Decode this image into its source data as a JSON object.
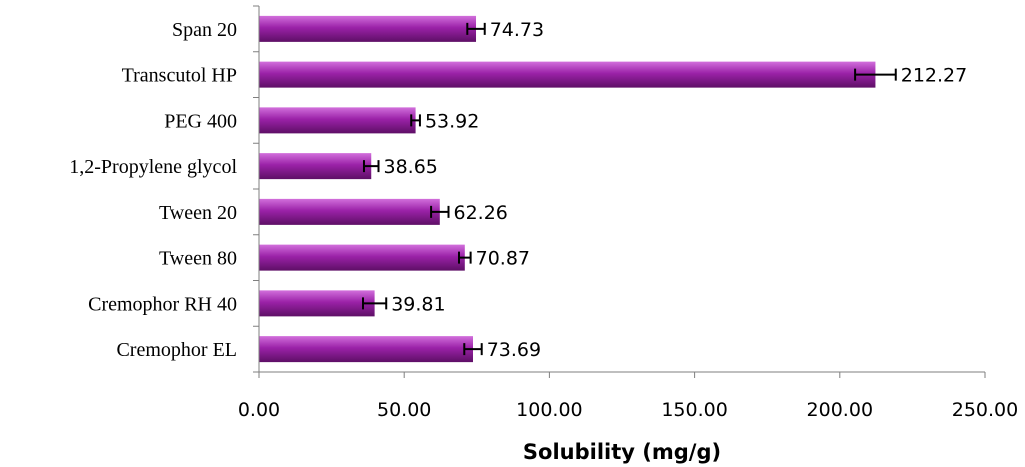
{
  "chart_data": {
    "type": "bar",
    "orientation": "horizontal",
    "categories": [
      "Span 20",
      "Transcutol HP",
      "PEG 400",
      "1,2-Propylene glycol",
      "Tween 20",
      "Tween 80",
      "Cremophor RH 40",
      "Cremophor EL"
    ],
    "values": [
      74.73,
      212.27,
      53.92,
      38.65,
      62.26,
      70.87,
      39.81,
      73.69
    ],
    "value_labels": [
      "74.73",
      "212.27",
      "53.92",
      "38.65",
      "62.26",
      "70.87",
      "39.81",
      "73.69"
    ],
    "errors": [
      3.0,
      7.0,
      1.5,
      2.5,
      3.0,
      2.0,
      4.0,
      3.0
    ],
    "title": "",
    "xlabel": "Solubility (mg/g)",
    "ylabel": "",
    "xlim": [
      0,
      250
    ],
    "xticks": [
      0,
      50,
      100,
      150,
      200,
      250
    ],
    "xtick_labels": [
      "0.00",
      "50.00",
      "100.00",
      "150.00",
      "200.00",
      "250.00"
    ],
    "grid": false,
    "legend": "none",
    "bar_color": "#9b22a8",
    "bar_highlight_color": "#d26fdc",
    "bar_shadow_color": "#5e0f66",
    "error_bar_color": "#000000"
  }
}
